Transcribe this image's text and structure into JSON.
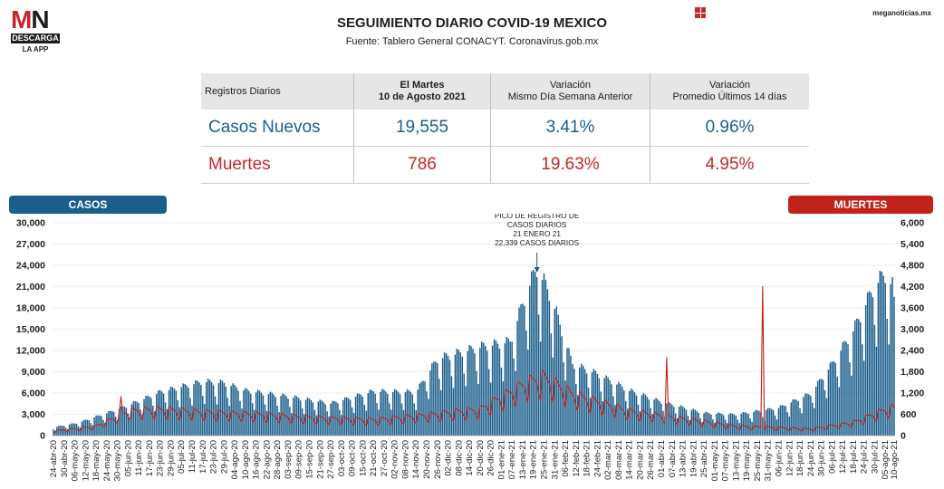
{
  "logo": {
    "mark_left": "M",
    "mark_right": "N",
    "tag": "DESCARGA",
    "sub": "LA APP"
  },
  "header": {
    "title": "SEGUIMIENTO DIARIO COVID-19 MEXICO",
    "subtitle": "Fuente: Tablero General CONACYT. Coronavirus.gob.mx",
    "site": "meganoticias.mx"
  },
  "colors": {
    "casos": "#1b5e8c",
    "muertes": "#c1221c",
    "text": "#1d1d1b"
  },
  "table": {
    "col_headers": [
      {
        "line1": "Registros Diarios",
        "line2": ""
      },
      {
        "line1": "El Martes",
        "line2": "10 de Agosto 2021"
      },
      {
        "line1": "Variación",
        "line2": "Mismo Día Semana Anterior"
      },
      {
        "line1": "Variación",
        "line2": "Promedio Últimos 14 días"
      }
    ],
    "rows": [
      {
        "label": "Casos Nuevos",
        "value": "19,555",
        "var_week": "3.41%",
        "var_14": "0.96%"
      },
      {
        "label": "Muertes",
        "value": "786",
        "var_week": "19.63%",
        "var_14": "4.95%"
      }
    ]
  },
  "legend": {
    "casos": "CASOS",
    "muertes": "MUERTES"
  },
  "chart_data": {
    "type": "bar",
    "series": [
      {
        "name": "CASOS",
        "axis": "left",
        "type": "bar",
        "color": "#1b5e8c",
        "anchors": [
          {
            "date": "2020-04-24",
            "value": 1100
          },
          {
            "date": "2020-05-08",
            "value": 1700
          },
          {
            "date": "2020-05-24",
            "value": 3000
          },
          {
            "date": "2020-06-05",
            "value": 4000
          },
          {
            "date": "2020-06-23",
            "value": 5800
          },
          {
            "date": "2020-07-17",
            "value": 7200
          },
          {
            "date": "2020-07-29",
            "value": 7000
          },
          {
            "date": "2020-08-10",
            "value": 6000
          },
          {
            "date": "2020-09-03",
            "value": 5200
          },
          {
            "date": "2020-09-27",
            "value": 4300
          },
          {
            "date": "2020-10-21",
            "value": 5900
          },
          {
            "date": "2020-11-14",
            "value": 5800
          },
          {
            "date": "2020-11-26",
            "value": 10200
          },
          {
            "date": "2020-12-20",
            "value": 11800
          },
          {
            "date": "2021-01-06",
            "value": 12500
          },
          {
            "date": "2021-01-15",
            "value": 19000
          },
          {
            "date": "2021-01-21",
            "value": 22339
          },
          {
            "date": "2021-01-29",
            "value": 18500
          },
          {
            "date": "2021-02-10",
            "value": 9500
          },
          {
            "date": "2021-02-24",
            "value": 8200
          },
          {
            "date": "2021-03-14",
            "value": 6000
          },
          {
            "date": "2021-04-01",
            "value": 4500
          },
          {
            "date": "2021-04-25",
            "value": 3000
          },
          {
            "date": "2021-05-13",
            "value": 2800
          },
          {
            "date": "2021-06-06",
            "value": 3700
          },
          {
            "date": "2021-06-24",
            "value": 5600
          },
          {
            "date": "2021-07-06",
            "value": 9500
          },
          {
            "date": "2021-07-18",
            "value": 14000
          },
          {
            "date": "2021-07-30",
            "value": 20000
          },
          {
            "date": "2021-08-05",
            "value": 21500
          },
          {
            "date": "2021-08-10",
            "value": 19555
          }
        ]
      },
      {
        "name": "MUERTES",
        "axis": "right",
        "type": "line",
        "color": "#c1221c",
        "anchors": [
          {
            "date": "2020-04-24",
            "value": 120
          },
          {
            "date": "2020-05-18",
            "value": 250
          },
          {
            "date": "2020-06-05",
            "value": 650
          },
          {
            "date": "2020-06-23",
            "value": 700
          },
          {
            "date": "2020-07-17",
            "value": 620
          },
          {
            "date": "2020-08-10",
            "value": 580
          },
          {
            "date": "2020-09-15",
            "value": 480
          },
          {
            "date": "2020-10-21",
            "value": 420
          },
          {
            "date": "2020-11-14",
            "value": 520
          },
          {
            "date": "2020-12-20",
            "value": 700
          },
          {
            "date": "2021-01-15",
            "value": 1400
          },
          {
            "date": "2021-01-25",
            "value": 1550
          },
          {
            "date": "2021-02-10",
            "value": 1100
          },
          {
            "date": "2021-03-14",
            "value": 650
          },
          {
            "date": "2021-04-13",
            "value": 450
          },
          {
            "date": "2021-05-13",
            "value": 250
          },
          {
            "date": "2021-06-24",
            "value": 180
          },
          {
            "date": "2021-07-18",
            "value": 350
          },
          {
            "date": "2021-08-10",
            "value": 786
          }
        ],
        "spikes": [
          {
            "date": "2020-06-01",
            "value": 1100
          },
          {
            "date": "2021-04-04",
            "value": 2200
          },
          {
            "date": "2021-05-28",
            "value": 4200
          }
        ]
      }
    ],
    "x_start": "2020-04-24",
    "x_end": "2021-08-10",
    "tick_labels": [
      "24-abr-20",
      "30-abr-20",
      "06-may-20",
      "12-may-20",
      "18-may-20",
      "24-may-20",
      "30-may-20",
      "05-jun-20",
      "11-jun-20",
      "17-jun-20",
      "23-jun-20",
      "29-jun-20",
      "05-jul-20",
      "11-jul-20",
      "17-jul-20",
      "23-jul-20",
      "29-jul-20",
      "04-ago-20",
      "10-ago-20",
      "16-ago-20",
      "22-ago-20",
      "28-ago-20",
      "03-sep-20",
      "09-sep-20",
      "15-sep-20",
      "21-sep-20",
      "27-sep-20",
      "03-oct-20",
      "09-oct-20",
      "15-oct-20",
      "21-oct-20",
      "27-oct-20",
      "02-nov-20",
      "08-nov-20",
      "14-nov-20",
      "20-nov-20",
      "26-nov-20",
      "02-dic-20",
      "08-dic-20",
      "14-dic-20",
      "20-dic-20",
      "26-dic-20",
      "01-ene-21",
      "07-ene-21",
      "13-ene-21",
      "19-ene-21",
      "25-ene-21",
      "31-ene-21",
      "06-feb-21",
      "12-feb-21",
      "18-feb-21",
      "24-feb-21",
      "02-mar-21",
      "08-mar-21",
      "14-mar-21",
      "20-mar-21",
      "26-mar-21",
      "01-abr-21",
      "07-abr-21",
      "13-abr-21",
      "19-abr-21",
      "25-abr-21",
      "01-may-21",
      "07-may-21",
      "13-may-21",
      "19-may-21",
      "25-may-21",
      "31-may-21",
      "06-jun-21",
      "12-jun-21",
      "18-jun-21",
      "24-jun-21",
      "30-jun-21",
      "06-jul-21",
      "12-jul-21",
      "18-jul-21",
      "24-jul-21",
      "30-jul-21",
      "05-ago-21",
      "10-ago-21"
    ],
    "y_left": {
      "min": 0,
      "max": 30000,
      "ticks": [
        "0",
        "3,000",
        "6,000",
        "9,000",
        "12,000",
        "15,000",
        "18,000",
        "21,000",
        "24,000",
        "27,000",
        "30,000"
      ]
    },
    "y_right": {
      "min": 0,
      "max": 6000,
      "ticks": [
        "0",
        "600",
        "1,200",
        "1,800",
        "2,400",
        "3,000",
        "3,600",
        "4,200",
        "4,800",
        "5,400",
        "6,000"
      ]
    },
    "annotation": {
      "date": "2021-01-21",
      "lines": [
        "PICO DE REGISTRO DE",
        "CASOS DIARIOS",
        "21 ENERO 21",
        "22,339 CASOS DIARIOS"
      ]
    },
    "grid": true
  }
}
